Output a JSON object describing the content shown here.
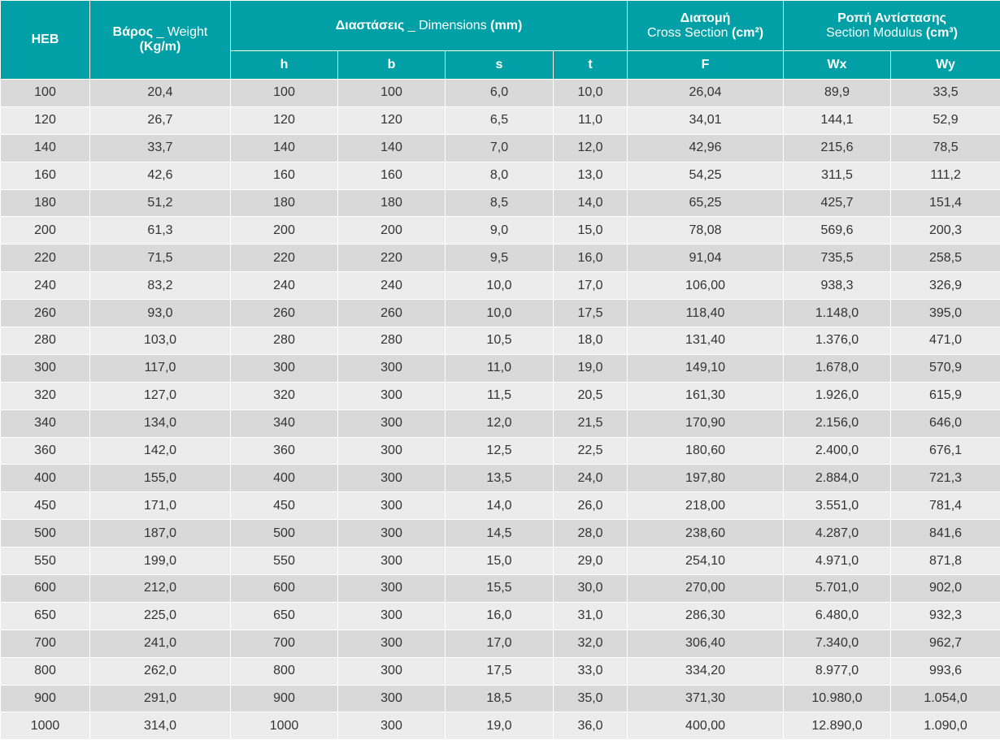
{
  "header": {
    "heb": "HEB",
    "weight": [
      "Βάρος",
      "_ Weight",
      "(Kg/m)"
    ],
    "dimensions": [
      "Διαστάσεις",
      "_ Dimensions",
      "(mm)"
    ],
    "section": [
      "Διατομή",
      "Cross Section",
      "(cm²)"
    ],
    "modulus": [
      "Ροπή Αντίστασης",
      "Section Modulus",
      "(cm³)"
    ],
    "sub": [
      "h",
      "b",
      "s",
      "t",
      "F",
      "Wx",
      "Wy"
    ]
  },
  "table": {
    "rows": [
      [
        "100",
        "20,4",
        "100",
        "100",
        "6,0",
        "10,0",
        "26,04",
        "89,9",
        "33,5"
      ],
      [
        "120",
        "26,7",
        "120",
        "120",
        "6,5",
        "11,0",
        "34,01",
        "144,1",
        "52,9"
      ],
      [
        "140",
        "33,7",
        "140",
        "140",
        "7,0",
        "12,0",
        "42,96",
        "215,6",
        "78,5"
      ],
      [
        "160",
        "42,6",
        "160",
        "160",
        "8,0",
        "13,0",
        "54,25",
        "311,5",
        "111,2"
      ],
      [
        "180",
        "51,2",
        "180",
        "180",
        "8,5",
        "14,0",
        "65,25",
        "425,7",
        "151,4"
      ],
      [
        "200",
        "61,3",
        "200",
        "200",
        "9,0",
        "15,0",
        "78,08",
        "569,6",
        "200,3"
      ],
      [
        "220",
        "71,5",
        "220",
        "220",
        "9,5",
        "16,0",
        "91,04",
        "735,5",
        "258,5"
      ],
      [
        "240",
        "83,2",
        "240",
        "240",
        "10,0",
        "17,0",
        "106,00",
        "938,3",
        "326,9"
      ],
      [
        "260",
        "93,0",
        "260",
        "260",
        "10,0",
        "17,5",
        "118,40",
        "1.148,0",
        "395,0"
      ],
      [
        "280",
        "103,0",
        "280",
        "280",
        "10,5",
        "18,0",
        "131,40",
        "1.376,0",
        "471,0"
      ],
      [
        "300",
        "117,0",
        "300",
        "300",
        "11,0",
        "19,0",
        "149,10",
        "1.678,0",
        "570,9"
      ],
      [
        "320",
        "127,0",
        "320",
        "300",
        "11,5",
        "20,5",
        "161,30",
        "1.926,0",
        "615,9"
      ],
      [
        "340",
        "134,0",
        "340",
        "300",
        "12,0",
        "21,5",
        "170,90",
        "2.156,0",
        "646,0"
      ],
      [
        "360",
        "142,0",
        "360",
        "300",
        "12,5",
        "22,5",
        "180,60",
        "2.400,0",
        "676,1"
      ],
      [
        "400",
        "155,0",
        "400",
        "300",
        "13,5",
        "24,0",
        "197,80",
        "2.884,0",
        "721,3"
      ],
      [
        "450",
        "171,0",
        "450",
        "300",
        "14,0",
        "26,0",
        "218,00",
        "3.551,0",
        "781,4"
      ],
      [
        "500",
        "187,0",
        "500",
        "300",
        "14,5",
        "28,0",
        "238,60",
        "4.287,0",
        "841,6"
      ],
      [
        "550",
        "199,0",
        "550",
        "300",
        "15,0",
        "29,0",
        "254,10",
        "4.971,0",
        "871,8"
      ],
      [
        "600",
        "212,0",
        "600",
        "300",
        "15,5",
        "30,0",
        "270,00",
        "5.701,0",
        "902,0"
      ],
      [
        "650",
        "225,0",
        "650",
        "300",
        "16,0",
        "31,0",
        "286,30",
        "6.480,0",
        "932,3"
      ],
      [
        "700",
        "241,0",
        "700",
        "300",
        "17,0",
        "32,0",
        "306,40",
        "7.340,0",
        "962,7"
      ],
      [
        "800",
        "262,0",
        "800",
        "300",
        "17,5",
        "33,0",
        "334,20",
        "8.977,0",
        "993,6"
      ],
      [
        "900",
        "291,0",
        "900",
        "300",
        "18,5",
        "35,0",
        "371,30",
        "10.980,0",
        "1.054,0"
      ],
      [
        "1000",
        "314,0",
        "1000",
        "300",
        "19,0",
        "36,0",
        "400,00",
        "12.890,0",
        "1.090,0"
      ]
    ]
  }
}
